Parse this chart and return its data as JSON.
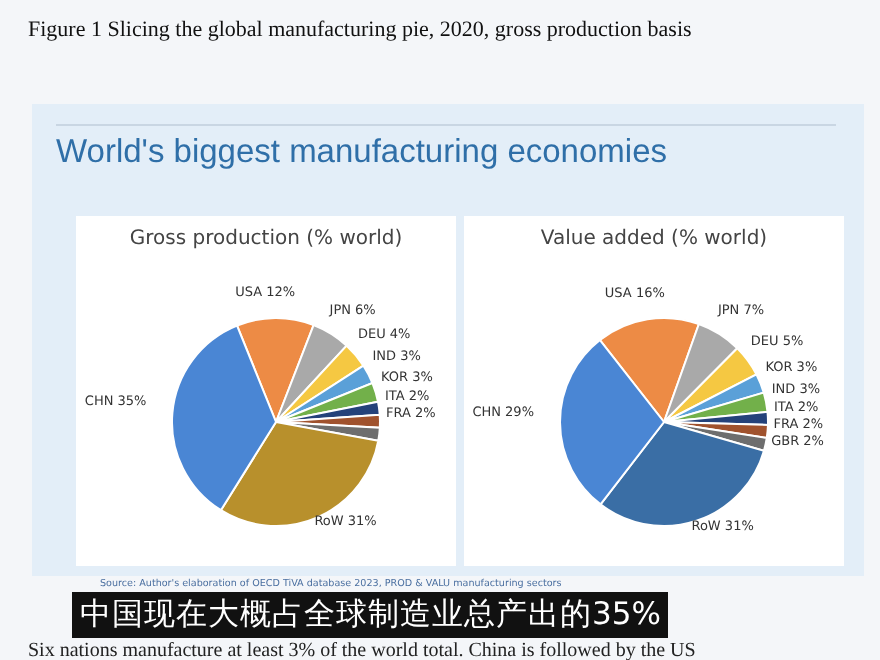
{
  "chart_data": [
    {
      "type": "pie",
      "title": "Gross production (% world)",
      "data_labels": true,
      "categories": [
        "USA",
        "JPN",
        "DEU",
        "IND",
        "KOR",
        "ITA",
        "FRA",
        null,
        "RoW",
        "CHN"
      ],
      "values": [
        12,
        6,
        4,
        3,
        3,
        2,
        2,
        2,
        31,
        35
      ],
      "value_labels": [
        "12%",
        "6%",
        "4%",
        "3%",
        "3%",
        "2%",
        "2%",
        null,
        "31%",
        "35%"
      ],
      "colors": [
        "#ed8b45",
        "#a9a9a9",
        "#f5c842",
        "#5aa0d8",
        "#72b04a",
        "#24427a",
        "#a0522d",
        "#6e6e6e",
        "#b8902c",
        "#4a86d4"
      ],
      "annotations": [
        "Figure 1 Slicing the global manufacturing pie, 2020, gross production basis",
        "World's biggest manufacturing economies"
      ]
    },
    {
      "type": "pie",
      "title": "Value added (% world)",
      "data_labels": true,
      "categories": [
        "USA",
        "JPN",
        "DEU",
        "KOR",
        "IND",
        "ITA",
        "FRA",
        "GBR",
        "RoW",
        "CHN"
      ],
      "values": [
        16,
        7,
        5,
        3,
        3,
        2,
        2,
        2,
        31,
        29
      ],
      "value_labels": [
        "16%",
        "7%",
        "5%",
        "3%",
        "3%",
        "2%",
        "2%",
        "2%",
        "31%",
        "29%"
      ],
      "colors": [
        "#ed8b45",
        "#a9a9a9",
        "#f5c842",
        "#5aa0d8",
        "#72b04a",
        "#24427a",
        "#a0522d",
        "#6e6e6e",
        "#3a6ea5",
        "#4a86d4"
      ],
      "annotations": [
        "Source: Author's elaboration of OECD TiVA database 2023, PROD & VALU manufacturing sectors",
        "中国现在大概占全球制造业总产出的35%",
        "Six nations manufacture at least 3% of the world total. China is followed by the US"
      ]
    }
  ]
}
